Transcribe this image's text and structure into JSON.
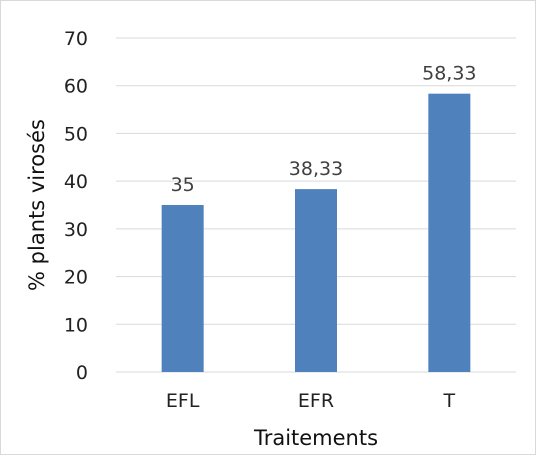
{
  "chart_data": {
    "type": "bar",
    "categories": [
      "EFL",
      "EFR",
      "T"
    ],
    "values": [
      35,
      38.33,
      58.33
    ],
    "data_labels": [
      "35",
      "38,33",
      "58,33"
    ],
    "xlabel": "Traitements",
    "ylabel": "% plants virosés",
    "ylim": [
      0,
      70
    ],
    "yticks": [
      0,
      10,
      20,
      30,
      40,
      50,
      60,
      70
    ],
    "grid": true,
    "legend": "none",
    "bar_color": "#4F81BD",
    "grid_color": "#d9d9d9"
  }
}
